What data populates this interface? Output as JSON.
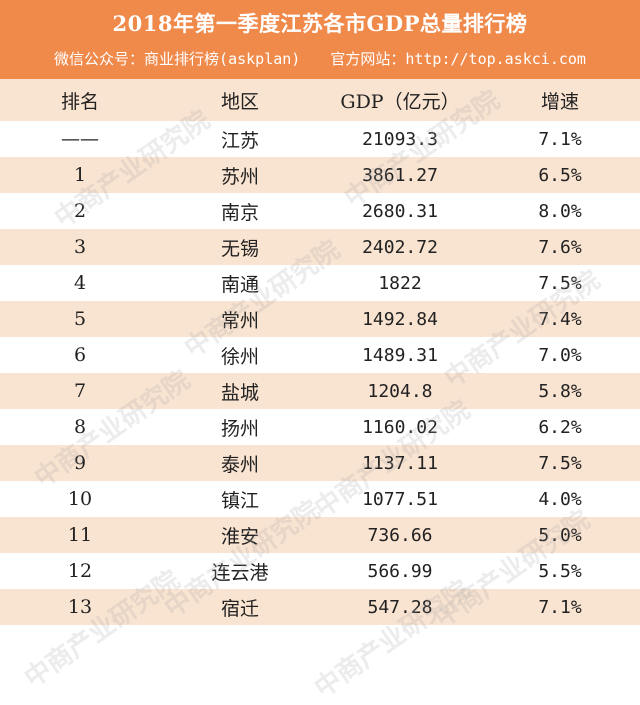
{
  "header": {
    "title": "2018年第一季度江苏各市GDP总量排行榜",
    "wechat": "微信公众号：商业排行榜(askplan)",
    "website": "官方网站：http://top.askci.com",
    "bg_color": "#F08A4B"
  },
  "columns": [
    "排名",
    "地区",
    "GDP（亿元）",
    "增速"
  ],
  "rows": [
    {
      "rank": "——",
      "region": "江苏",
      "gdp": "21093.3",
      "growth": "7.1%"
    },
    {
      "rank": "1",
      "region": "苏州",
      "gdp": "3861.27",
      "growth": "6.5%"
    },
    {
      "rank": "2",
      "region": "南京",
      "gdp": "2680.31",
      "growth": "8.0%"
    },
    {
      "rank": "3",
      "region": "无锡",
      "gdp": "2402.72",
      "growth": "7.6%"
    },
    {
      "rank": "4",
      "region": "南通",
      "gdp": "1822",
      "growth": "7.5%"
    },
    {
      "rank": "5",
      "region": "常州",
      "gdp": "1492.84",
      "growth": "7.4%"
    },
    {
      "rank": "6",
      "region": "徐州",
      "gdp": "1489.31",
      "growth": "7.0%"
    },
    {
      "rank": "7",
      "region": "盐城",
      "gdp": "1204.8",
      "growth": "5.8%"
    },
    {
      "rank": "8",
      "region": "扬州",
      "gdp": "1160.02",
      "growth": "6.2%"
    },
    {
      "rank": "9",
      "region": "泰州",
      "gdp": "1137.11",
      "growth": "7.5%"
    },
    {
      "rank": "10",
      "region": "镇江",
      "gdp": "1077.51",
      "growth": "4.0%"
    },
    {
      "rank": "11",
      "region": "淮安",
      "gdp": "736.66",
      "growth": "5.0%"
    },
    {
      "rank": "12",
      "region": "连云港",
      "gdp": "566.99",
      "growth": "5.5%"
    },
    {
      "rank": "13",
      "region": "宿迁",
      "gdp": "547.28",
      "growth": "7.1%"
    }
  ],
  "watermark": "中商产业研究院",
  "stripe_color": "#F9E3D1"
}
